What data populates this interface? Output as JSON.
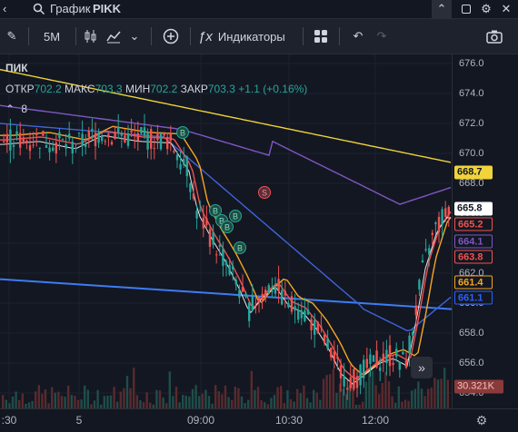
{
  "titlebar": {
    "title": "График",
    "symbol": "PIKK"
  },
  "toolbar": {
    "interval": "5M",
    "indicators_label": "Индикаторы"
  },
  "legend": {
    "ticker": "ПИК",
    "open_label": "ОТКР",
    "open": "702.2",
    "high_label": "МАКС",
    "high": "703.3",
    "low_label": "МИН",
    "low": "702.2",
    "close_label": "ЗАКР",
    "close": "703.3",
    "change": "+1.1 (+0.16%)",
    "studies_count": "8"
  },
  "price_axis": {
    "ticks": [
      "676.0",
      "674.0",
      "672.0",
      "670.0",
      "668.0",
      "666.0",
      "664.0",
      "662.0",
      "660.0",
      "658.0",
      "656.0",
      "654.0"
    ],
    "labels": [
      {
        "value": "668.7",
        "bg": "#f0d43a",
        "fg": "#131722"
      },
      {
        "value": "665.8",
        "bg": "#ffffff",
        "fg": "#131722"
      },
      {
        "value": "665.2",
        "bg": "#131722",
        "fg": "#ef5350"
      },
      {
        "value": "664.1",
        "bg": "#131722",
        "fg": "#7e57c2"
      },
      {
        "value": "663.8",
        "bg": "#131722",
        "fg": "#ef5350"
      },
      {
        "value": "661.4",
        "bg": "#131722",
        "fg": "#f5a623"
      },
      {
        "value": "661.1",
        "bg": "#131722",
        "fg": "#2962ff"
      }
    ],
    "volume_label": "30.321K"
  },
  "time_axis": {
    "ticks": [
      ":30",
      "5",
      "09:00",
      "10:30",
      "12:00"
    ]
  },
  "markers": [
    "B",
    "B",
    "B",
    "B",
    "B",
    "B",
    "S"
  ],
  "colors": {
    "up": "#26a69a",
    "down": "#ef5350",
    "ma_yellow": "#f0d43a",
    "ma_purple": "#7e57c2",
    "ma_blue": "#2962ff",
    "ma_orange": "#f5a623",
    "ma_red": "#ef5350",
    "trend": "#3d7cf5",
    "background": "#131722"
  }
}
